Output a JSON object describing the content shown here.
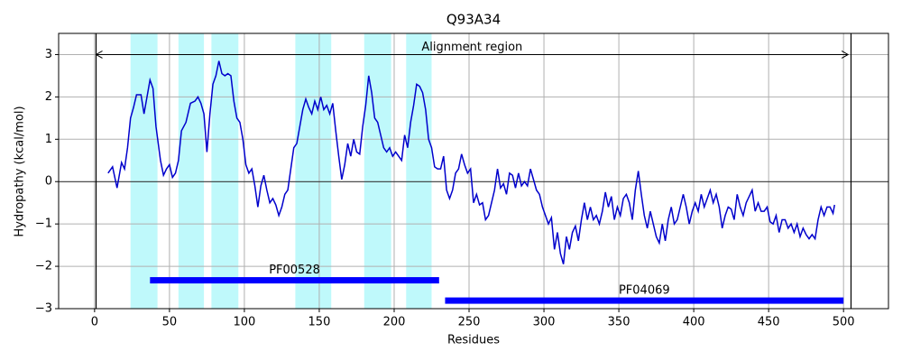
{
  "chart_data": {
    "type": "line",
    "title": "Q93A34",
    "xlabel": "Residues",
    "ylabel": "Hydropathy (kcal/mol)",
    "xlim": [
      -24,
      530
    ],
    "ylim": [
      -3,
      3.5
    ],
    "xticks": [
      0,
      50,
      100,
      150,
      200,
      250,
      300,
      350,
      400,
      450,
      500
    ],
    "yticks": [
      {
        "value": -3,
        "label": "−3"
      },
      {
        "value": -2,
        "label": "−2"
      },
      {
        "value": -1,
        "label": "−1"
      },
      0,
      1,
      2,
      3
    ],
    "grid": true,
    "hline": 0,
    "vlines": [
      1,
      505
    ],
    "spans": [
      [
        24,
        42
      ],
      [
        56,
        73
      ],
      [
        78,
        96
      ],
      [
        134,
        158
      ],
      [
        180,
        198
      ],
      [
        208,
        225
      ]
    ],
    "span_color": "#bff9fb",
    "region": {
      "label": "Alignment region",
      "start": 1,
      "end": 503,
      "y": 3
    },
    "domains": [
      {
        "name": "PF00528",
        "start": 37,
        "end": 230,
        "y": -2.33,
        "color": "#0000ff"
      },
      {
        "name": "PF04069",
        "start": 234,
        "end": 500,
        "y": -2.81,
        "color": "#0000ff"
      }
    ],
    "series": [
      {
        "color": "#0000cc",
        "x": [
          9,
          12,
          15,
          18,
          20,
          22,
          24,
          26,
          28,
          31,
          33,
          35,
          37,
          39,
          41,
          44,
          46,
          48,
          50,
          52,
          54,
          56,
          58,
          61,
          64,
          67,
          69,
          71,
          73,
          75,
          77,
          79,
          81,
          83,
          85,
          87,
          89,
          91,
          93,
          95,
          97,
          99,
          101,
          103,
          105,
          107,
          109,
          111,
          113,
          115,
          117,
          119,
          121,
          123,
          125,
          127,
          129,
          131,
          133,
          135,
          137,
          139,
          141,
          143,
          145,
          147,
          149,
          151,
          153,
          155,
          157,
          159,
          161,
          163,
          165,
          167,
          169,
          171,
          173,
          175,
          177,
          179,
          181,
          183,
          185,
          187,
          189,
          191,
          193,
          195,
          197,
          199,
          201,
          203,
          205,
          207,
          209,
          211,
          213,
          215,
          217,
          219,
          221,
          223,
          225,
          227,
          229,
          231,
          233,
          235,
          237,
          239,
          241,
          243,
          245,
          247,
          249,
          251,
          253,
          255,
          257,
          259,
          261,
          263,
          265,
          267,
          269,
          271,
          273,
          275,
          277,
          279,
          281,
          283,
          285,
          287,
          289,
          291,
          293,
          295,
          297,
          299,
          301,
          303,
          305,
          307,
          309,
          311,
          313,
          315,
          317,
          319,
          321,
          323,
          325,
          327,
          329,
          331,
          333,
          335,
          337,
          339,
          341,
          343,
          345,
          347,
          349,
          351,
          353,
          355,
          357,
          359,
          361,
          363,
          365,
          367,
          369,
          371,
          373,
          375,
          377,
          379,
          381,
          383,
          385,
          387,
          389,
          391,
          393,
          395,
          397,
          399,
          401,
          403,
          405,
          407,
          409,
          411,
          413,
          415,
          417,
          419,
          421,
          423,
          425,
          427,
          429,
          431,
          433,
          435,
          437,
          439,
          441,
          443,
          445,
          447,
          449,
          451,
          453,
          455,
          457,
          459,
          461,
          463,
          465,
          467,
          469,
          471,
          473,
          475,
          477,
          479,
          481,
          483,
          485,
          487,
          489,
          491,
          493,
          494
        ],
        "values": [
          0.2,
          0.35,
          -0.15,
          0.45,
          0.3,
          0.8,
          1.5,
          1.75,
          2.05,
          2.05,
          1.6,
          2.0,
          2.4,
          2.2,
          1.3,
          0.5,
          0.15,
          0.3,
          0.4,
          0.1,
          0.2,
          0.5,
          1.2,
          1.4,
          1.85,
          1.9,
          2.0,
          1.85,
          1.6,
          0.7,
          1.6,
          2.3,
          2.5,
          2.85,
          2.55,
          2.5,
          2.55,
          2.5,
          1.9,
          1.5,
          1.4,
          1.0,
          0.4,
          0.2,
          0.3,
          -0.1,
          -0.6,
          -0.1,
          0.15,
          -0.2,
          -0.5,
          -0.4,
          -0.55,
          -0.8,
          -0.6,
          -0.3,
          -0.2,
          0.3,
          0.8,
          0.9,
          1.3,
          1.7,
          1.95,
          1.75,
          1.6,
          1.9,
          1.7,
          2.0,
          1.7,
          1.8,
          1.6,
          1.85,
          1.2,
          0.6,
          0.05,
          0.4,
          0.9,
          0.6,
          1.0,
          0.7,
          0.65,
          1.3,
          1.8,
          2.5,
          2.1,
          1.5,
          1.4,
          1.1,
          0.8,
          0.7,
          0.8,
          0.6,
          0.7,
          0.6,
          0.5,
          1.1,
          0.8,
          1.4,
          1.8,
          2.3,
          2.25,
          2.1,
          1.7,
          1.0,
          0.8,
          0.35,
          0.3,
          0.3,
          0.6,
          -0.2,
          -0.4,
          -0.2,
          0.2,
          0.3,
          0.65,
          0.4,
          0.2,
          0.3,
          -0.5,
          -0.3,
          -0.55,
          -0.5,
          -0.9,
          -0.8,
          -0.5,
          -0.2,
          0.3,
          -0.15,
          -0.05,
          -0.3,
          0.2,
          0.15,
          -0.15,
          0.2,
          -0.1,
          0.0,
          -0.1,
          0.3,
          0.05,
          -0.2,
          -0.3,
          -0.6,
          -0.8,
          -1.0,
          -0.85,
          -1.6,
          -1.2,
          -1.7,
          -1.95,
          -1.3,
          -1.6,
          -1.2,
          -1.05,
          -1.4,
          -0.9,
          -0.5,
          -0.9,
          -0.6,
          -0.9,
          -0.8,
          -1.0,
          -0.7,
          -0.25,
          -0.6,
          -0.35,
          -0.9,
          -0.6,
          -0.8,
          -0.4,
          -0.3,
          -0.5,
          -0.9,
          -0.2,
          0.25,
          -0.3,
          -0.8,
          -1.1,
          -0.7,
          -1.0,
          -1.3,
          -1.45,
          -1.0,
          -1.4,
          -0.9,
          -0.6,
          -1.0,
          -0.9,
          -0.6,
          -0.3,
          -0.6,
          -1.0,
          -0.7,
          -0.5,
          -0.7,
          -0.3,
          -0.6,
          -0.4,
          -0.2,
          -0.5,
          -0.3,
          -0.6,
          -1.1,
          -0.8,
          -0.6,
          -0.65,
          -0.9,
          -0.3,
          -0.6,
          -0.8,
          -0.5,
          -0.35,
          -0.2,
          -0.7,
          -0.5,
          -0.7,
          -0.7,
          -0.6,
          -0.95,
          -1.0,
          -0.8,
          -1.2,
          -0.9,
          -0.9,
          -1.1,
          -1.0,
          -1.2,
          -1.0,
          -1.3,
          -1.1,
          -1.25,
          -1.35,
          -1.25,
          -1.35,
          -0.9,
          -0.6,
          -0.8,
          -0.6,
          -0.6,
          -0.75,
          -0.55
        ]
      }
    ]
  }
}
